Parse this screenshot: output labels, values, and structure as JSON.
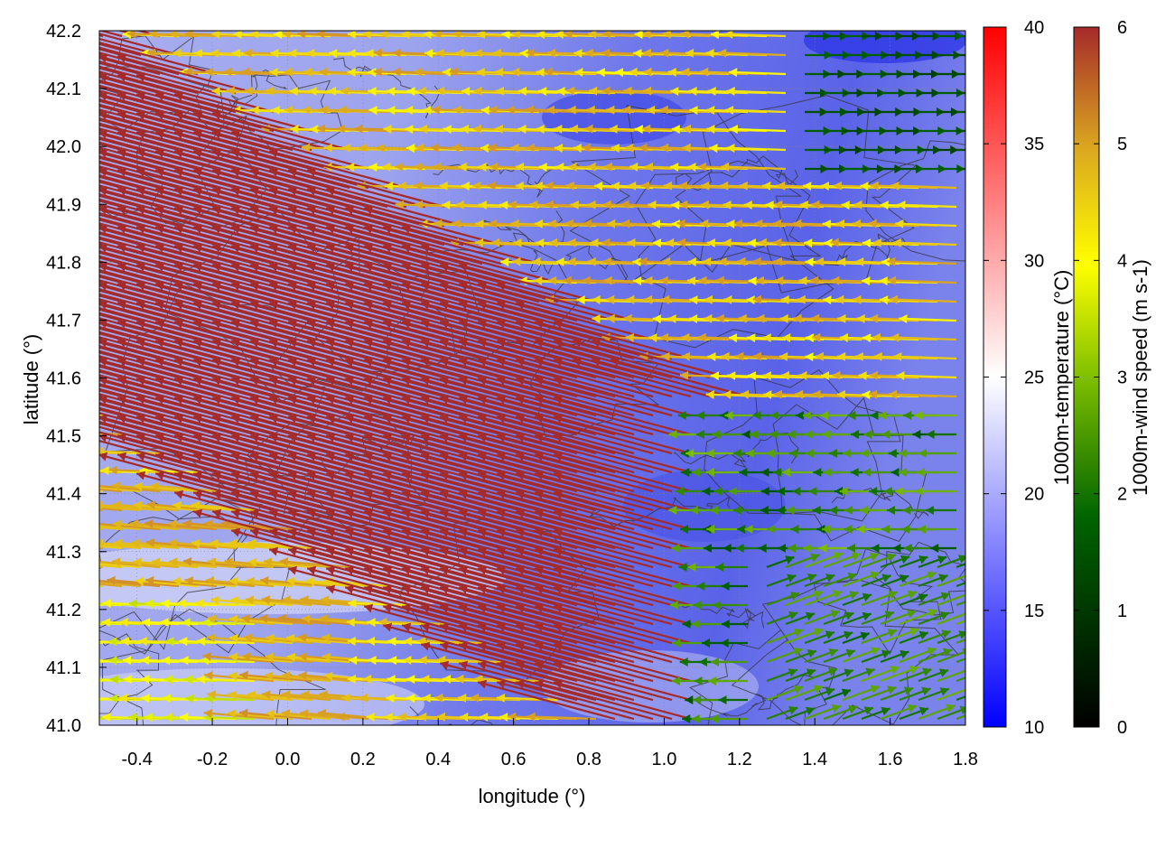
{
  "chart_data": {
    "type": "vector-field",
    "xlabel": "longitude (°)",
    "ylabel": "latitude (°)",
    "xlim": [
      -0.5,
      1.8
    ],
    "ylim": [
      41.0,
      42.2
    ],
    "x_ticks": [
      "-0.4",
      "-0.2",
      "0.0",
      "0.2",
      "0.4",
      "0.6",
      "0.8",
      "1.0",
      "1.2",
      "1.4",
      "1.6",
      "1.8"
    ],
    "x_tick_values": [
      -0.4,
      -0.2,
      0.0,
      0.2,
      0.4,
      0.6,
      0.8,
      1.0,
      1.2,
      1.4,
      1.6,
      1.8
    ],
    "y_ticks": [
      "41.0",
      "41.1",
      "41.2",
      "41.3",
      "41.4",
      "41.5",
      "41.6",
      "41.7",
      "41.8",
      "41.9",
      "42.0",
      "42.1",
      "42.2"
    ],
    "y_tick_values": [
      41.0,
      41.1,
      41.2,
      41.3,
      41.4,
      41.5,
      41.6,
      41.7,
      41.8,
      41.9,
      42.0,
      42.1,
      42.2
    ],
    "grid": true,
    "background_field": {
      "name": "1000m-temperature",
      "colorbar_label": "1000m-temperature (°C)",
      "range": [
        10,
        40
      ],
      "ticks": [
        "10",
        "15",
        "20",
        "25",
        "30",
        "35",
        "40"
      ],
      "tick_values": [
        10,
        15,
        20,
        25,
        30,
        35,
        40
      ],
      "colors": [
        "#0000ff",
        "#ffffff",
        "#ff0000"
      ],
      "typical_value_range": [
        14,
        22
      ]
    },
    "vector_field": {
      "name": "1000m-wind speed",
      "colorbar_label": "1000m-wind speed (m s-1)",
      "range": [
        0,
        6
      ],
      "ticks": [
        "0",
        "1",
        "2",
        "3",
        "4",
        "5",
        "6"
      ],
      "tick_values": [
        0,
        1,
        2,
        3,
        4,
        5,
        6
      ],
      "colors": [
        "#000000",
        "#006400",
        "#7fbf00",
        "#ffff00",
        "#daa520",
        "#cd7f32",
        "#a52a2a"
      ],
      "dominant_direction": "from east to west (westward arrows)",
      "regions": [
        {
          "area": "north-west and central band",
          "speed": 6,
          "direction": "west-north-west"
        },
        {
          "area": "central east",
          "speed": 4.5,
          "direction": "west"
        },
        {
          "area": "north-east corner",
          "speed": 1.5,
          "direction": "east"
        },
        {
          "area": "south-east corner",
          "speed": 2,
          "direction": "east-north-east"
        },
        {
          "area": "south-west",
          "speed": 3.5,
          "direction": "west"
        }
      ]
    },
    "contours": {
      "color": "#333333",
      "description": "terrain elevation contour lines"
    }
  }
}
